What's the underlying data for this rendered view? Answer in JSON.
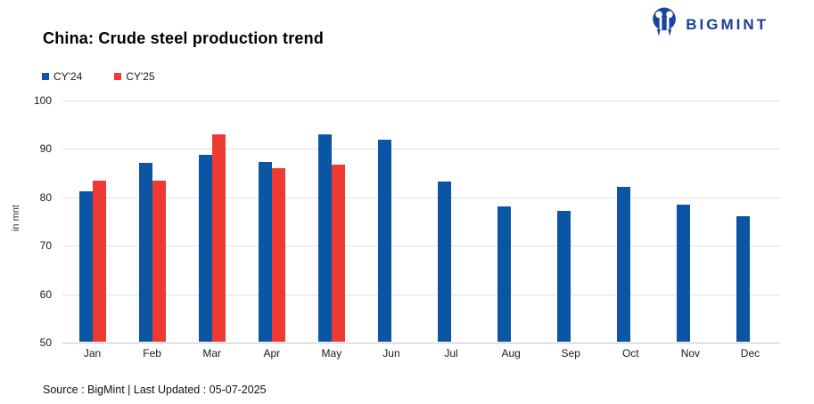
{
  "header": {
    "brand": "BIGMINT"
  },
  "chart_data": {
    "type": "bar",
    "title": "China: Crude steel production trend",
    "categories": [
      "Jan",
      "Feb",
      "Mar",
      "Apr",
      "May",
      "Jun",
      "Jul",
      "Aug",
      "Sep",
      "Oct",
      "Nov",
      "Dec"
    ],
    "series": [
      {
        "name": "CY'24",
        "color": "#0a56a5",
        "values": [
          81.1,
          86.9,
          88.6,
          87.1,
          92.9,
          91.7,
          83.0,
          77.9,
          77.1,
          81.9,
          78.4,
          76.0
        ]
      },
      {
        "name": "CY'25",
        "color": "#ee3a33",
        "values": [
          83.2,
          83.2,
          92.8,
          85.9,
          86.5,
          null,
          null,
          null,
          null,
          null,
          null,
          null
        ]
      }
    ],
    "xlabel": "",
    "ylabel": "in mnt",
    "ylim": [
      50,
      100
    ],
    "yticks": [
      100,
      90,
      80,
      70,
      60,
      50
    ],
    "grid": true,
    "legend_position": "top-left"
  },
  "footer": {
    "source": "Source : BigMint | Last Updated : 05-07-2025"
  },
  "colors": {
    "brand_blue": "#1b3f94",
    "gridline": "#e0e0e0",
    "axisline": "#c7c7c7"
  }
}
